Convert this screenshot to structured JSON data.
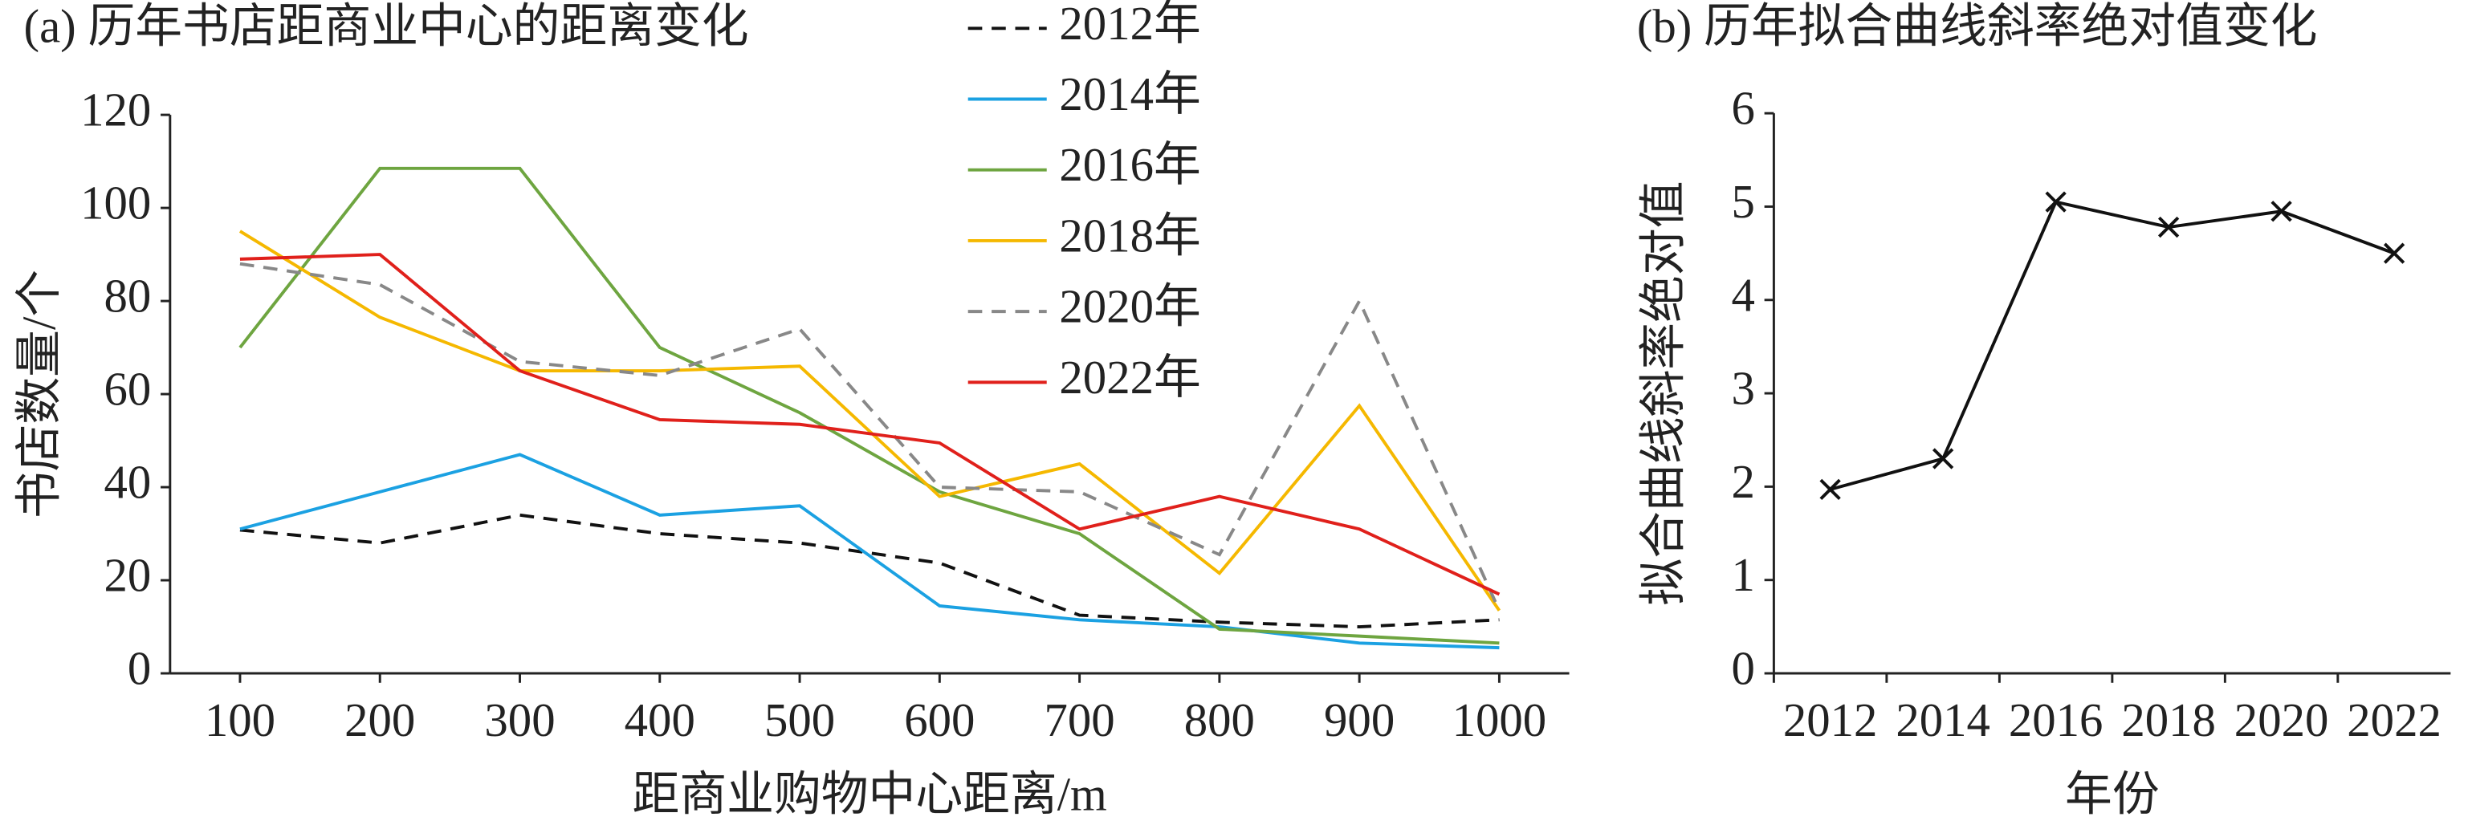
{
  "chart_data": [
    {
      "type": "line",
      "title": "(a) 历年书店距商业中心的距离变化",
      "x_label": "距商业购物中心距离/m",
      "y_label": "书店数量/个",
      "x": [
        100,
        200,
        300,
        400,
        500,
        600,
        700,
        800,
        900,
        1000
      ],
      "xlim": [
        50,
        1050
      ],
      "xticks": [
        100,
        200,
        300,
        400,
        500,
        600,
        700,
        800,
        900,
        1000
      ],
      "ylim": [
        0,
        120
      ],
      "yticks": [
        0,
        20,
        40,
        60,
        80,
        100,
        120
      ],
      "series": [
        {
          "name": "2012年",
          "color": "#111111",
          "dashed": true,
          "values": [
            30.8,
            28,
            34,
            30,
            28,
            23.7,
            12.5,
            11,
            10,
            11.5
          ]
        },
        {
          "name": "2014年",
          "color": "#1ba1e2",
          "dashed": false,
          "values": [
            31,
            39,
            47,
            34,
            36,
            14.5,
            11.5,
            10,
            6.5,
            5.5
          ]
        },
        {
          "name": "2016年",
          "color": "#6ea540",
          "dashed": false,
          "values": [
            70,
            108.5,
            108.5,
            70,
            56,
            39,
            30,
            9.5,
            8,
            6.5
          ]
        },
        {
          "name": "2018年",
          "color": "#f5b800",
          "dashed": false,
          "values": [
            95,
            76.5,
            65,
            65,
            66,
            38,
            45,
            21.5,
            57.5,
            13.5
          ]
        },
        {
          "name": "2020年",
          "color": "#888888",
          "dashed": true,
          "values": [
            88,
            83.5,
            67,
            64,
            74,
            40,
            39,
            25.5,
            80,
            13.5
          ]
        },
        {
          "name": "2022年",
          "color": "#e0201b",
          "dashed": false,
          "values": [
            89,
            90,
            65,
            54.5,
            53.5,
            49.5,
            31,
            38,
            31,
            17
          ]
        }
      ]
    },
    {
      "type": "line",
      "title": "(b) 历年拟合曲线斜率绝对值变化",
      "x_label": "年份",
      "y_label": "拟合曲线斜率绝对值",
      "categories": [
        "2012",
        "2014",
        "2016",
        "2018",
        "2020",
        "2022"
      ],
      "ylim": [
        0,
        6
      ],
      "yticks": [
        0,
        1,
        2,
        3,
        4,
        5,
        6
      ],
      "marker": "x",
      "series": [
        {
          "color": "#111111",
          "dashed": false,
          "values": [
            1.97,
            2.3,
            5.05,
            4.78,
            4.95,
            4.5
          ]
        }
      ]
    }
  ]
}
